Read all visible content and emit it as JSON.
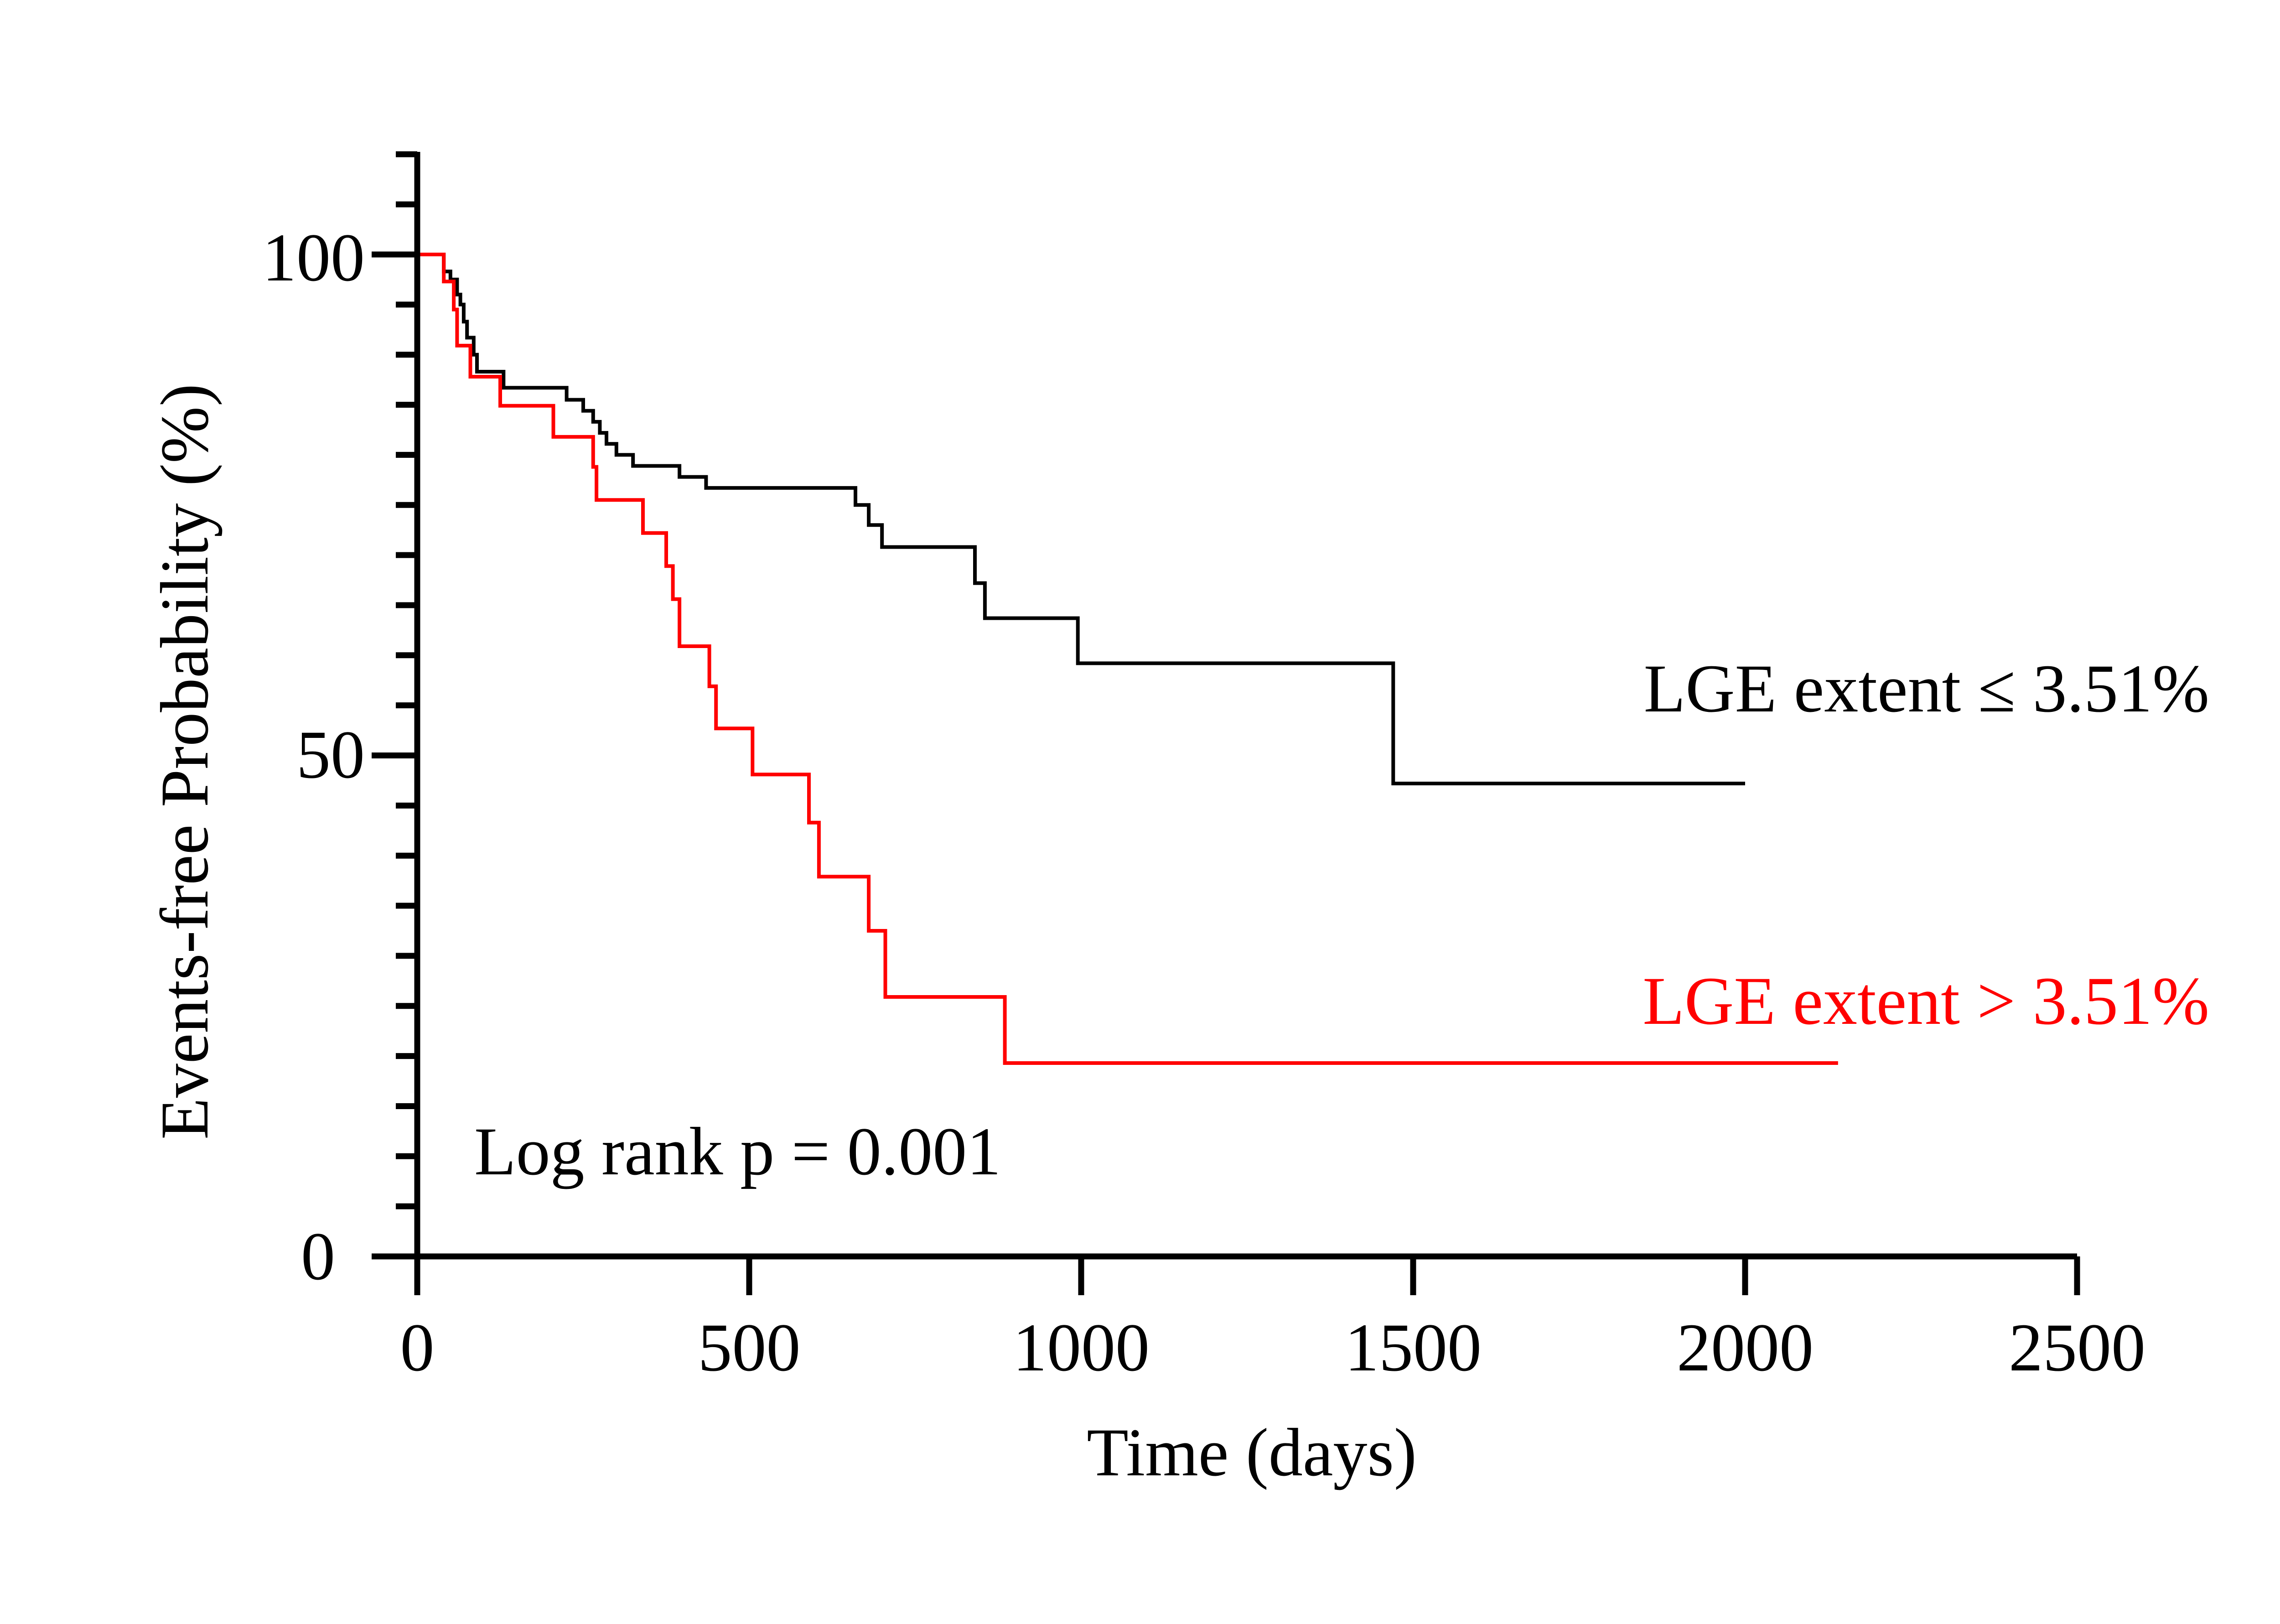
{
  "chart_data": {
    "type": "line",
    "subtype": "kaplan-meier step",
    "xlabel": "Time (days)",
    "ylabel": "Events-free Probability (%)",
    "xlim": [
      0,
      2500
    ],
    "ylim": [
      0,
      110
    ],
    "x_ticks": [
      "0",
      "500",
      "1000",
      "1500",
      "2000",
      "2500"
    ],
    "y_ticks": [
      "0",
      "50",
      "100"
    ],
    "annotation": "Log rank p = 0.001",
    "colors": {
      "axis": "#000000",
      "low": "#000000",
      "high": "#ff0000"
    },
    "series": [
      {
        "name": "LGE extent ≤ 3.51%",
        "color": "#000000",
        "points": [
          [
            0,
            100
          ],
          [
            40,
            100
          ],
          [
            40,
            98.3
          ],
          [
            50,
            98.3
          ],
          [
            50,
            97.5
          ],
          [
            60,
            97.5
          ],
          [
            60,
            96
          ],
          [
            65,
            96
          ],
          [
            65,
            95
          ],
          [
            70,
            95
          ],
          [
            70,
            93.3
          ],
          [
            75,
            93.3
          ],
          [
            75,
            91.7
          ],
          [
            85,
            91.7
          ],
          [
            85,
            90
          ],
          [
            90,
            90
          ],
          [
            90,
            88.3
          ],
          [
            130,
            88.3
          ],
          [
            130,
            86.7
          ],
          [
            225,
            86.7
          ],
          [
            225,
            85.5
          ],
          [
            250,
            85.5
          ],
          [
            250,
            84.4
          ],
          [
            265,
            84.4
          ],
          [
            265,
            83.3
          ],
          [
            275,
            83.3
          ],
          [
            275,
            82.2
          ],
          [
            285,
            82.2
          ],
          [
            285,
            81.1
          ],
          [
            300,
            81.1
          ],
          [
            300,
            80
          ],
          [
            325,
            80
          ],
          [
            325,
            78.9
          ],
          [
            395,
            78.9
          ],
          [
            395,
            77.8
          ],
          [
            435,
            77.8
          ],
          [
            435,
            76.7
          ],
          [
            660,
            76.7
          ],
          [
            660,
            75
          ],
          [
            680,
            75
          ],
          [
            680,
            73
          ],
          [
            700,
            73
          ],
          [
            700,
            70.8
          ],
          [
            840,
            70.8
          ],
          [
            840,
            67.2
          ],
          [
            855,
            67.2
          ],
          [
            855,
            63.7
          ],
          [
            995,
            63.7
          ],
          [
            995,
            59.2
          ],
          [
            1470,
            59.2
          ],
          [
            1470,
            47.2
          ],
          [
            2000,
            47.2
          ]
        ]
      },
      {
        "name": "LGE extent > 3.51%",
        "color": "#ff0000",
        "points": [
          [
            0,
            100
          ],
          [
            40,
            100
          ],
          [
            40,
            97.3
          ],
          [
            55,
            97.3
          ],
          [
            55,
            94.5
          ],
          [
            60,
            94.5
          ],
          [
            60,
            90.9
          ],
          [
            80,
            90.9
          ],
          [
            80,
            87.8
          ],
          [
            125,
            87.8
          ],
          [
            125,
            84.9
          ],
          [
            205,
            84.9
          ],
          [
            205,
            81.8
          ],
          [
            265,
            81.8
          ],
          [
            265,
            78.8
          ],
          [
            270,
            78.8
          ],
          [
            270,
            75.5
          ],
          [
            340,
            75.5
          ],
          [
            340,
            72.2
          ],
          [
            375,
            72.2
          ],
          [
            375,
            68.9
          ],
          [
            385,
            68.9
          ],
          [
            385,
            65.6
          ],
          [
            395,
            65.6
          ],
          [
            395,
            60.9
          ],
          [
            440,
            60.9
          ],
          [
            440,
            56.9
          ],
          [
            450,
            56.9
          ],
          [
            450,
            52.7
          ],
          [
            505,
            52.7
          ],
          [
            505,
            48.1
          ],
          [
            590,
            48.1
          ],
          [
            590,
            43.3
          ],
          [
            605,
            43.3
          ],
          [
            605,
            37.9
          ],
          [
            680,
            37.9
          ],
          [
            680,
            32.5
          ],
          [
            705,
            32.5
          ],
          [
            705,
            25.9
          ],
          [
            885,
            25.9
          ],
          [
            885,
            19.3
          ],
          [
            2140,
            19.3
          ]
        ]
      }
    ]
  }
}
